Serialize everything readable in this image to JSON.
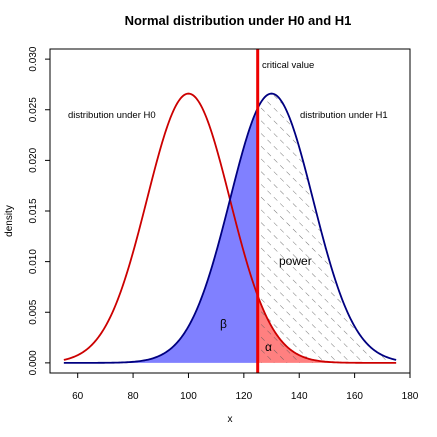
{
  "chart_data": {
    "type": "line",
    "title": "Normal distribution under H0 and H1",
    "xlabel": "x",
    "ylabel": "density",
    "xlim": [
      50,
      180
    ],
    "ylim": [
      -0.001,
      0.031
    ],
    "x_ticks": [
      "60",
      "80",
      "100",
      "120",
      "140",
      "160",
      "180"
    ],
    "x_tick_values": [
      60,
      80,
      100,
      120,
      140,
      160,
      180
    ],
    "y_ticks": [
      "0.000",
      "0.005",
      "0.010",
      "0.015",
      "0.020",
      "0.025",
      "0.030"
    ],
    "y_tick_values": [
      0,
      0.005,
      0.01,
      0.015,
      0.02,
      0.025,
      0.03
    ],
    "grid": false,
    "series": [
      {
        "name": "distribution under H0",
        "distribution": "normal",
        "mean": 100,
        "sd": 15,
        "x_range": [
          55,
          175
        ],
        "color": "#cc0000"
      },
      {
        "name": "distribution under H1",
        "distribution": "normal",
        "mean": 130,
        "sd": 15,
        "x_range": [
          55,
          175
        ],
        "color": "#000080"
      }
    ],
    "critical_value": 125,
    "critical_value_label": "critical value",
    "regions": [
      {
        "label": "β",
        "description": "H1 density left of critical value",
        "color": "#8080ff"
      },
      {
        "label": "α",
        "description": "H0 density right of critical value",
        "color": "#ff8080"
      },
      {
        "label": "power",
        "description": "H1 density right of critical value",
        "pattern": "diagonal hatch"
      }
    ],
    "annotations": {
      "h0": "distribution under H0",
      "h1": "distribution under H1",
      "power": "power",
      "beta": "β",
      "alpha": "α",
      "critical": "critical value"
    },
    "colors": {
      "h0_curve": "#cc0000",
      "h1_curve": "#000080",
      "beta_fill": "#8080ff",
      "alpha_fill": "#ff8080",
      "critical_line": "#ee0000",
      "hatch": "#555555"
    }
  }
}
